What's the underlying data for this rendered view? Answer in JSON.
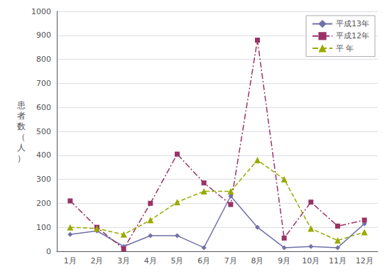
{
  "chart_data": {
    "type": "line",
    "y_label": "患者数（人）",
    "categories": [
      "1月",
      "2月",
      "3月",
      "4月",
      "5月",
      "6月",
      "7月",
      "8月",
      "9月",
      "10月",
      "11月",
      "12月"
    ],
    "series": [
      {
        "name": "平成13年",
        "color": "#7070aa",
        "marker": "diamond",
        "line_style": "solid",
        "values": [
          70,
          85,
          20,
          65,
          65,
          15,
          230,
          100,
          15,
          20,
          15,
          115
        ]
      },
      {
        "name": "平成12年",
        "color": "#993366",
        "marker": "square",
        "line_style": "dashdot",
        "values": [
          210,
          100,
          10,
          200,
          405,
          285,
          195,
          880,
          55,
          205,
          105,
          130
        ]
      },
      {
        "name": "平 年",
        "color": "#99aa00",
        "marker": "triangle",
        "line_style": "dashed",
        "values": [
          100,
          95,
          70,
          130,
          205,
          250,
          250,
          380,
          300,
          95,
          45,
          80
        ]
      }
    ],
    "ylim": [
      0,
      1000
    ],
    "yticks": [
      0,
      100,
      200,
      300,
      400,
      500,
      600,
      700,
      800,
      900,
      1000
    ],
    "grid": true,
    "legend": "upper right"
  }
}
